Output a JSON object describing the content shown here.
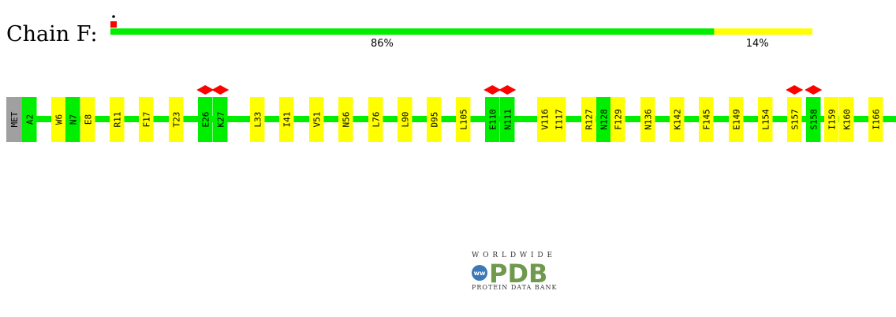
{
  "chain": {
    "label": "Chain F:",
    "summary": {
      "green_fraction": 0.86,
      "yellow_fraction": 0.14,
      "green_label": "86%",
      "yellow_label": "14%",
      "colors": {
        "good": "#00ee00",
        "warn": "#ffff00",
        "outlier": "#ff0000",
        "unmodelled": "#a0a0a0"
      }
    },
    "residues": [
      {
        "name": "MET",
        "color": "#a0a0a0"
      },
      {
        "name": "A2",
        "color": "#00ee00"
      },
      {
        "name": "W6",
        "color": "#ffff00"
      },
      {
        "name": "N7",
        "color": "#00ee00"
      },
      {
        "name": "E8",
        "color": "#ffff00"
      },
      {
        "name": "R11",
        "color": "#ffff00"
      },
      {
        "name": "F17",
        "color": "#ffff00"
      },
      {
        "name": "T23",
        "color": "#ffff00"
      },
      {
        "name": "E26",
        "color": "#00ee00",
        "marker": true
      },
      {
        "name": "K27",
        "color": "#00ee00",
        "marker": true
      },
      {
        "name": "L33",
        "color": "#ffff00"
      },
      {
        "name": "I41",
        "color": "#ffff00"
      },
      {
        "name": "V51",
        "color": "#ffff00"
      },
      {
        "name": "N56",
        "color": "#ffff00"
      },
      {
        "name": "L76",
        "color": "#ffff00"
      },
      {
        "name": "L90",
        "color": "#ffff00"
      },
      {
        "name": "D95",
        "color": "#ffff00"
      },
      {
        "name": "L105",
        "color": "#ffff00"
      },
      {
        "name": "E110",
        "color": "#00ee00",
        "marker": true
      },
      {
        "name": "N111",
        "color": "#00ee00",
        "marker": true
      },
      {
        "name": "V116",
        "color": "#ffff00"
      },
      {
        "name": "I117",
        "color": "#ffff00"
      },
      {
        "name": "R127",
        "color": "#ffff00"
      },
      {
        "name": "N128",
        "color": "#00ee00"
      },
      {
        "name": "F129",
        "color": "#ffff00"
      },
      {
        "name": "N136",
        "color": "#ffff00"
      },
      {
        "name": "K142",
        "color": "#ffff00"
      },
      {
        "name": "F145",
        "color": "#ffff00"
      },
      {
        "name": "E149",
        "color": "#ffff00"
      },
      {
        "name": "L154",
        "color": "#ffff00"
      },
      {
        "name": "S157",
        "color": "#ffff00",
        "marker": true
      },
      {
        "name": "S158",
        "color": "#00ee00",
        "marker": true
      },
      {
        "name": "I159",
        "color": "#ffff00"
      },
      {
        "name": "K160",
        "color": "#ffff00"
      },
      {
        "name": "I166",
        "color": "#ffff00"
      }
    ]
  },
  "logo": {
    "top_text": "W O R L D W I D E",
    "main_text": "PDB",
    "badge_text": "wwPDB",
    "bottom_text": "PROTEIN DATA BANK"
  }
}
